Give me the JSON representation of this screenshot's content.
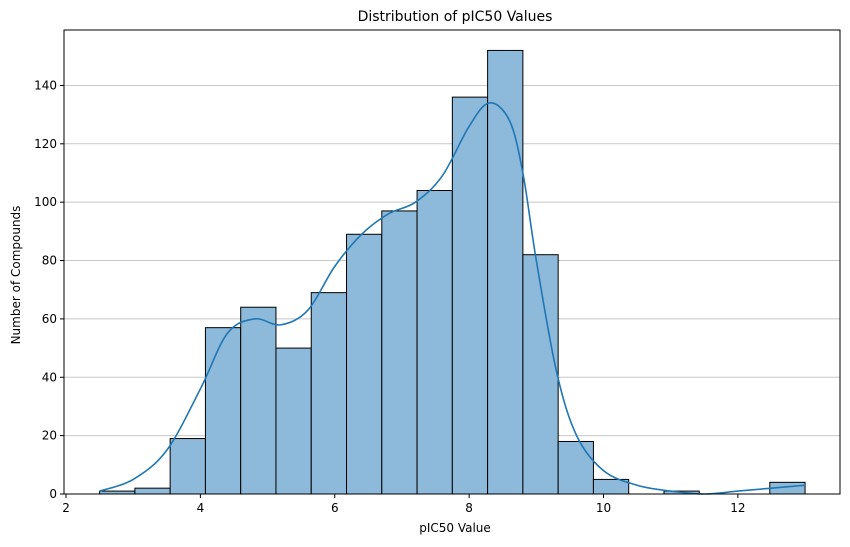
{
  "chart_data": {
    "type": "histogram",
    "title": "Distribution of pIC50 Values",
    "xlabel": "pIC50 Value",
    "ylabel": "Number of Compounds",
    "xlim": [
      1.97,
      13.52
    ],
    "ylim": [
      0,
      159
    ],
    "xticks": [
      2,
      4,
      6,
      8,
      10,
      12
    ],
    "yticks": [
      0,
      20,
      40,
      60,
      80,
      100,
      120,
      140
    ],
    "grid": {
      "axis": "y",
      "on": true
    },
    "bar_color": "#8db9da",
    "edge_color": "#000000",
    "kde_color": "#1f77b4",
    "bins": [
      {
        "x0": 2.5,
        "x1": 3.025,
        "count": 1
      },
      {
        "x0": 3.025,
        "x1": 3.55,
        "count": 2
      },
      {
        "x0": 3.55,
        "x1": 4.075,
        "count": 19
      },
      {
        "x0": 4.075,
        "x1": 4.6,
        "count": 57
      },
      {
        "x0": 4.6,
        "x1": 5.125,
        "count": 64
      },
      {
        "x0": 5.125,
        "x1": 5.65,
        "count": 50
      },
      {
        "x0": 5.65,
        "x1": 6.175,
        "count": 69
      },
      {
        "x0": 6.175,
        "x1": 6.7,
        "count": 89
      },
      {
        "x0": 6.7,
        "x1": 7.225,
        "count": 97
      },
      {
        "x0": 7.225,
        "x1": 7.75,
        "count": 104
      },
      {
        "x0": 7.75,
        "x1": 8.275,
        "count": 136
      },
      {
        "x0": 8.275,
        "x1": 8.8,
        "count": 152
      },
      {
        "x0": 8.8,
        "x1": 9.325,
        "count": 82
      },
      {
        "x0": 9.325,
        "x1": 9.85,
        "count": 18
      },
      {
        "x0": 9.85,
        "x1": 10.375,
        "count": 5
      },
      {
        "x0": 10.375,
        "x1": 10.9,
        "count": 0
      },
      {
        "x0": 10.9,
        "x1": 11.425,
        "count": 1
      },
      {
        "x0": 11.425,
        "x1": 11.95,
        "count": 0
      },
      {
        "x0": 11.95,
        "x1": 12.475,
        "count": 0
      },
      {
        "x0": 12.475,
        "x1": 13.0,
        "count": 4
      }
    ],
    "kde": {
      "x": [
        2.5,
        3.0,
        3.5,
        4.0,
        4.4,
        4.8,
        5.2,
        5.6,
        6.0,
        6.4,
        6.8,
        7.2,
        7.6,
        8.0,
        8.3,
        8.6,
        8.8,
        9.0,
        9.3,
        9.6,
        10.0,
        10.5,
        11.0,
        11.5,
        12.0,
        12.5,
        13.0
      ],
      "y": [
        1,
        5,
        15,
        36,
        55,
        60,
        58,
        63,
        78,
        89,
        96,
        100,
        109,
        126,
        134,
        128,
        110,
        80,
        42,
        20,
        8,
        3,
        1,
        0,
        1,
        2,
        3
      ]
    }
  }
}
